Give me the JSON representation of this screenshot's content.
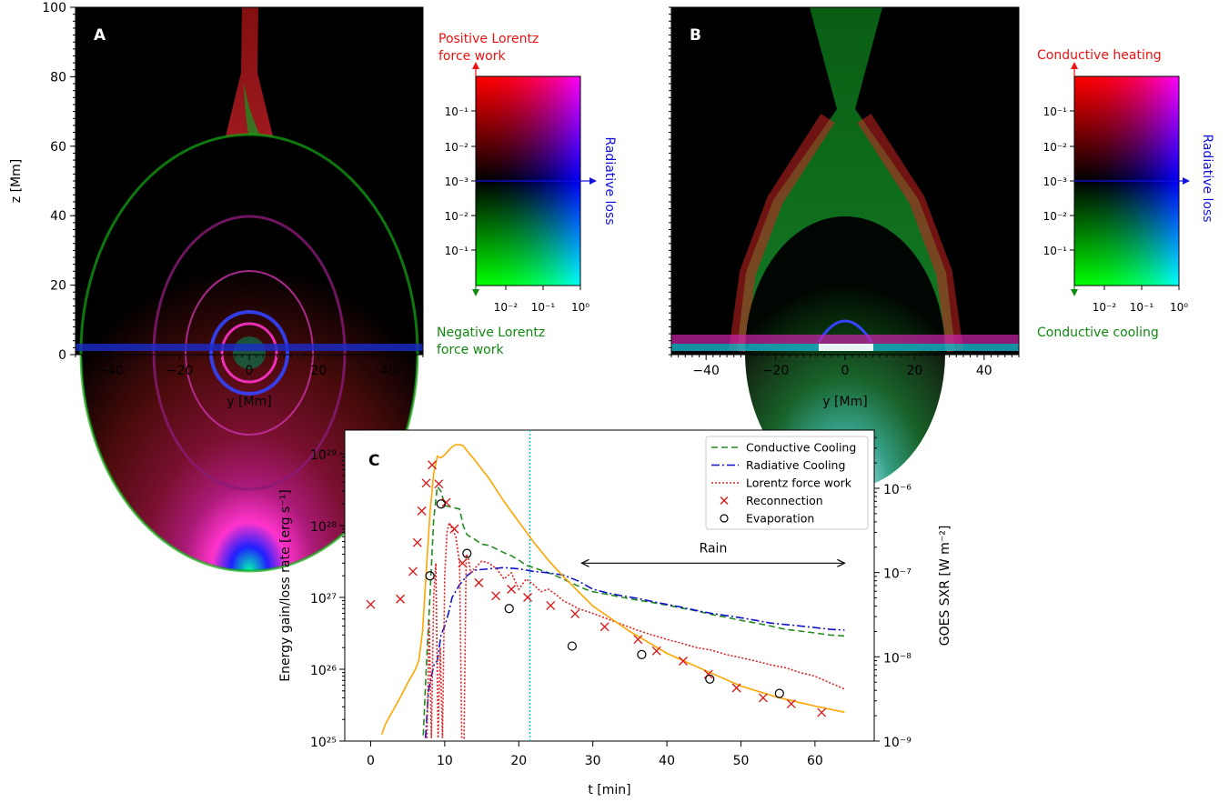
{
  "panels": {
    "A": {
      "letter": "A",
      "xlabel": "y [Mm]",
      "ylabel": "z [Mm]",
      "xticks": [
        "−40",
        "−20",
        "0",
        "20",
        "40"
      ],
      "yticks": [
        "0",
        "20",
        "40",
        "60",
        "80",
        "100"
      ],
      "legend": {
        "top_label": [
          "Positive Lorentz",
          "force work"
        ],
        "bottom_label": [
          "Negative Lorentz",
          "force work"
        ],
        "side_label": "Radiative loss",
        "left_ticks": [
          "10⁻¹",
          "10⁻²",
          "10⁻³",
          "10⁻²",
          "10⁻¹"
        ],
        "bottom_ticks": [
          "10⁻²",
          "10⁻¹",
          "10⁰"
        ],
        "top_color": "#ee1111",
        "bottom_color": "#118811",
        "side_color": "#1111dd"
      }
    },
    "B": {
      "letter": "B",
      "xlabel": "y [Mm]",
      "xticks": [
        "−40",
        "−20",
        "0",
        "20",
        "40"
      ],
      "legend": {
        "top_label": [
          "Conductive heating"
        ],
        "bottom_label": [
          "Conductive cooling"
        ],
        "side_label": "Radiative loss",
        "left_ticks": [
          "10⁻¹",
          "10⁻²",
          "10⁻³",
          "10⁻²",
          "10⁻¹"
        ],
        "bottom_ticks": [
          "10⁻²",
          "10⁻¹",
          "10⁰"
        ],
        "top_color": "#ee1111",
        "bottom_color": "#118811",
        "side_color": "#1111dd"
      }
    }
  },
  "chart_data": {
    "type": "line",
    "letter": "C",
    "xlabel": "t [min]",
    "ylabel": "Energy gain/loss rate [erg s⁻¹]",
    "ylabel_right": "GOES SXR [W m⁻²]",
    "xlim": [
      -3.5,
      68
    ],
    "ylim": [
      1e+25,
      1e+29
    ],
    "ylim_right": [
      1e-09,
      5e-06
    ],
    "xticks": [
      0,
      10,
      20,
      30,
      40,
      50,
      60
    ],
    "xtick_labels": [
      "0",
      "10",
      "20",
      "30",
      "40",
      "50",
      "60"
    ],
    "yticks": [
      1e+25,
      1e+26,
      1e+27,
      1e+28,
      1e+29
    ],
    "ytick_labels": [
      "10²⁵",
      "10²⁶",
      "10²⁷",
      "10²⁸",
      "10²⁹"
    ],
    "yticks_right": [
      1e-09,
      1e-08,
      1e-07,
      1e-06
    ],
    "ytick_labels_right": [
      "10⁻⁹",
      "10⁻⁸",
      "10⁻⁷",
      "10⁻⁶"
    ],
    "vline_x": 21.5,
    "annotation": {
      "text": "Rain",
      "x_start": 28.5,
      "x_end": 64,
      "y": 3e+27
    },
    "legend_position": "top-right",
    "series": [
      {
        "name": "Conductive Cooling",
        "color": "#228B22",
        "dash": "7,4",
        "x": [
          7.1,
          7.5,
          8,
          8.5,
          9,
          9.5,
          10,
          11,
          12,
          12.5,
          13,
          14,
          15,
          16,
          17,
          18,
          19,
          20,
          21,
          22,
          23,
          24,
          25,
          26,
          27,
          28,
          29,
          30,
          32,
          34,
          36,
          38,
          40,
          42,
          44,
          46,
          48,
          50,
          52,
          54,
          56,
          58,
          60,
          62,
          64
        ],
        "y": [
          1.2e+25,
          1e+26,
          1e+27,
          1.2e+28,
          3.5e+28,
          3e+28,
          1.9e+28,
          1.8e+28,
          1.7e+28,
          1e+28,
          7.5e+27,
          6.5e+27,
          5.5e+27,
          5.3e+27,
          4.7e+27,
          4.2e+27,
          3.8e+27,
          3.3e+27,
          2.8e+27,
          2.6e+27,
          2.4e+27,
          2.2e+27,
          2e+27,
          1.8e+27,
          1.6e+27,
          1.45e+27,
          1.3e+27,
          1.2e+27,
          1.1e+27,
          1e+27,
          9.2e+26,
          8.5e+26,
          7.8e+26,
          7.1e+26,
          6.5e+26,
          5.8e+26,
          5.3e+26,
          4.8e+26,
          4.4e+26,
          4e+26,
          3.6e+26,
          3.4e+26,
          3.2e+26,
          3e+26,
          2.9e+26
        ]
      },
      {
        "name": "Radiative Cooling",
        "color": "#1111cc",
        "dash": "9,3,2,3",
        "x": [
          7.4,
          7.8,
          8.2,
          8.6,
          9,
          9.5,
          10,
          10.5,
          11,
          12,
          13,
          14,
          16,
          18,
          20,
          22,
          24,
          26,
          28,
          30,
          32,
          34,
          36,
          38,
          40,
          42,
          44,
          46,
          48,
          50,
          52,
          54,
          56,
          58,
          60,
          62,
          64
        ],
        "y": [
          1.1e+25,
          5e+25,
          8e+25,
          1.2e+26,
          1.3e+26,
          3e+26,
          4e+26,
          6e+26,
          1e+27,
          1.5e+27,
          2e+27,
          2.4e+27,
          2.5e+27,
          2.6e+27,
          2.5e+27,
          2.3e+27,
          2.2e+27,
          2.05e+27,
          1.7e+27,
          1.3e+27,
          1.15e+27,
          1.05e+27,
          9.7e+26,
          8.8e+26,
          8e+26,
          7.3e+26,
          6.6e+26,
          6e+26,
          5.6e+26,
          5.2e+26,
          4.8e+26,
          4.4e+26,
          4.2e+26,
          4e+26,
          3.8e+26,
          3.6e+26,
          3.5e+26
        ]
      },
      {
        "name": "Lorentz force work",
        "color": "#dd2222",
        "dash": "2,2",
        "x": [
          7.6,
          7.9,
          8.2,
          8.5,
          8.8,
          9.1,
          9.4,
          9.7,
          10.0,
          10.3,
          10.6,
          11,
          11.5,
          12,
          12.3,
          12.6,
          12.9,
          13.2,
          13.5,
          14,
          15,
          16,
          17,
          18,
          19,
          20,
          21,
          22,
          23,
          24,
          25,
          26,
          27,
          28,
          30,
          32,
          34,
          36,
          38,
          40,
          42,
          44,
          46,
          48,
          50,
          52,
          54,
          56,
          58,
          60,
          62,
          64
        ],
        "y": [
          1.1e+25,
          5e+26,
          1.1e+25,
          1e+27,
          3e+27,
          1.1e+25,
          2e+26,
          1.1e+25,
          2e+27,
          8e+27,
          1.1e+28,
          9e+27,
          7e+27,
          3e+27,
          1.1e+25,
          1.1e+25,
          4e+27,
          3.5e+27,
          2.2e+27,
          2.5e+27,
          3.2e+27,
          3e+27,
          2.5e+27,
          1.8e+27,
          2.2e+27,
          1.3e+27,
          1.8e+27,
          1.5e+27,
          1.2e+27,
          1.3e+27,
          1.1e+27,
          9e+26,
          8e+26,
          7e+26,
          6e+26,
          5e+26,
          4.2e+26,
          3.5e+26,
          3e+26,
          2.6e+26,
          2.3e+26,
          2e+26,
          1.85e+26,
          1.6e+26,
          1.45e+26,
          1.3e+26,
          1.15e+26,
          1.05e+26,
          9e+25,
          8e+25,
          6.5e+25,
          5.3e+25
        ]
      },
      {
        "name": "GOES SXR",
        "color": "#FFA500",
        "dash": "",
        "x": [
          1.5,
          2,
          3,
          4,
          5,
          6,
          6.5,
          7,
          7.5,
          8,
          8.5,
          9,
          9.5,
          10,
          10.5,
          11,
          11.5,
          12,
          12.5,
          13,
          14,
          16,
          18,
          20,
          22,
          24,
          26,
          28,
          30,
          35,
          40,
          45,
          50,
          55,
          60,
          64
        ],
        "y": [
          1.2e-09,
          1.6e-09,
          2.3e-09,
          3.3e-09,
          4.9e-09,
          7e-09,
          9e-09,
          2e-08,
          1e-07,
          5e-07,
          1.5e-06,
          2.4e-06,
          2.3e-06,
          2.5e-06,
          2.8e-06,
          3.1e-06,
          3.3e-06,
          3.3e-06,
          3.2e-06,
          2.8e-06,
          2.2e-06,
          1.3e-06,
          7e-07,
          4e-07,
          2.3e-07,
          1.4e-07,
          9e-08,
          6e-08,
          4e-08,
          2e-08,
          1.1e-08,
          7e-09,
          4.5e-09,
          3.3e-09,
          2.6e-09,
          2.2e-09
        ],
        "axis": "right"
      },
      {
        "name": "Reconnection",
        "color": "#dd1111",
        "marker": "x",
        "x": [
          0,
          4,
          5.7,
          6.3,
          6.9,
          7.5,
          8.3,
          9.2,
          10.2,
          11.3,
          12.4,
          14.6,
          16.9,
          19.0,
          21.2,
          24.3,
          27.6,
          31.6,
          36.1,
          38.6,
          42.2,
          45.6,
          49.4,
          53.0,
          56.8,
          60.9
        ],
        "y": [
          8e+26,
          9.5e+26,
          2.3e+27,
          5.8e+27,
          1.6e+28,
          3.9e+28,
          7e+28,
          3.8e+28,
          2.1e+28,
          9e+27,
          3e+27,
          1.6e+27,
          1.05e+27,
          1.3e+27,
          1e+27,
          7.7e+26,
          5.9e+26,
          3.9e+26,
          2.6e+26,
          1.8e+26,
          1.3e+26,
          8.5e+25,
          5.5e+25,
          4e+25,
          3.3e+25,
          2.5e+25
        ]
      },
      {
        "name": "Evaporation",
        "color": "#000000",
        "marker": "o",
        "x": [
          8.0,
          9.5,
          13.0,
          18.7,
          27.2,
          36.6,
          45.8,
          55.2
        ],
        "y": [
          2e+27,
          2e+28,
          4.1e+27,
          7e+26,
          2.1e+26,
          1.6e+26,
          7.3e+25,
          4.6e+25
        ]
      }
    ]
  }
}
